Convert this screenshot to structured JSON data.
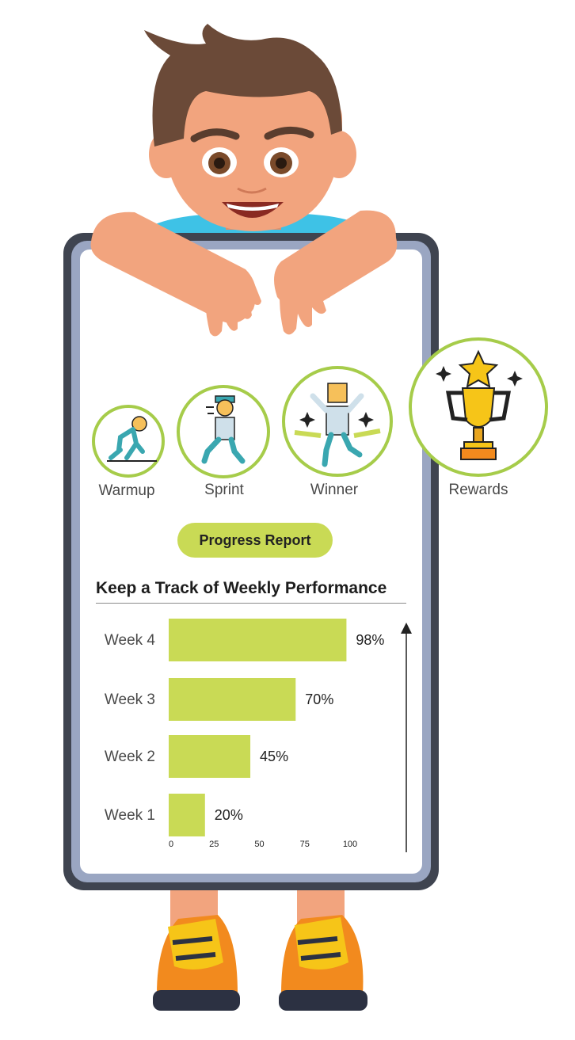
{
  "badges": [
    {
      "name": "warmup",
      "label": "Warmup"
    },
    {
      "name": "sprint",
      "label": "Sprint"
    },
    {
      "name": "winner",
      "label": "Winner"
    },
    {
      "name": "rewards",
      "label": "Rewards"
    }
  ],
  "progress_button": {
    "label": "Progress Report"
  },
  "colors": {
    "accent_green": "#c9da55",
    "ring_green": "#a6cc4a",
    "frame_dark": "#3f4450",
    "frame_light": "#9aa6c2",
    "skin": "#f2a47e",
    "hair": "#6b4a38",
    "shirt": "#3ec2e6",
    "shoe_orange": "#f28a1e",
    "shoe_yellow": "#f6c518",
    "shoe_dark": "#2c3142"
  },
  "chart_data": {
    "type": "bar",
    "orientation": "horizontal",
    "title": "Keep a Track of Weekly Performance",
    "categories": [
      "Week 4",
      "Week 3",
      "Week 2",
      "Week 1"
    ],
    "values": [
      98,
      70,
      45,
      20
    ],
    "value_labels": [
      "98%",
      "70%",
      "45%",
      "20%"
    ],
    "xticks": [
      "0",
      "25",
      "50",
      "75",
      "100"
    ],
    "xlim": [
      0,
      100
    ],
    "grid": false,
    "legend": "none"
  }
}
